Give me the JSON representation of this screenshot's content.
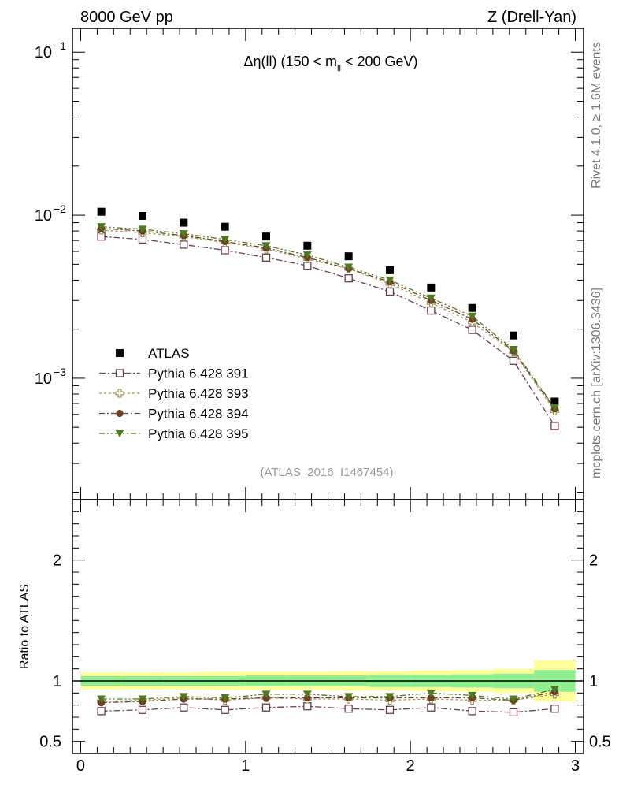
{
  "header": {
    "left": "8000 GeV pp",
    "right": "Z (Drell-Yan)"
  },
  "side_labels": {
    "rivet": "Rivet 4.1.0, ≥ 1.6M events",
    "mcplots": "mcplots.cern.ch [arXiv:1306.3436]"
  },
  "colors": {
    "atlas": "#000000",
    "p391": "#6e3a52",
    "p393": "#9a9a55",
    "p394": "#6b4226",
    "p395": "#4f7a1f",
    "band_outer": "#ffff99",
    "band_inner": "#90ee90"
  },
  "chart_data": [
    {
      "type": "scatter",
      "name": "main",
      "title": "Δη(ll) (150 < m_ll < 200 GeV)",
      "title_parts": {
        "prefix": "Δη(ll) (150 < m",
        "sub": "ll",
        "suffix": " < 200 GeV)"
      },
      "analysis_tag": "(ATLAS_2016_I1467454)",
      "xlabel": "",
      "ylabel": "",
      "yscale": "log",
      "xlim": [
        -0.05,
        3.05
      ],
      "ylim": [
        0.00018,
        0.14
      ],
      "ytick_labels": [
        {
          "value": 0.1,
          "base": "10",
          "exp": "−1"
        },
        {
          "value": 0.01,
          "base": "10",
          "exp": "−2"
        },
        {
          "value": 0.001,
          "base": "10",
          "exp": "−3"
        }
      ],
      "x": [
        0.125,
        0.375,
        0.625,
        0.875,
        1.125,
        1.375,
        1.625,
        1.875,
        2.125,
        2.375,
        2.625,
        2.875
      ],
      "series": [
        {
          "name": "ATLAS",
          "key": "atlas",
          "marker": "square-filled",
          "values": [
            0.0105,
            0.0099,
            0.009,
            0.0085,
            0.0074,
            0.0065,
            0.0056,
            0.0046,
            0.0036,
            0.0027,
            0.00183,
            0.00072
          ]
        },
        {
          "name": "Pythia 6.428 391",
          "key": "p391",
          "marker": "square-open",
          "dash": "8,3,2,3",
          "values": [
            0.0074,
            0.0071,
            0.0066,
            0.0061,
            0.0055,
            0.0049,
            0.0041,
            0.0034,
            0.0026,
            0.00198,
            0.00128,
            0.00051
          ]
        },
        {
          "name": "Pythia 6.428 393",
          "key": "p393",
          "marker": "cross-open",
          "dash": "3,3",
          "values": [
            0.0081,
            0.0078,
            0.0074,
            0.0068,
            0.0062,
            0.0054,
            0.0047,
            0.0038,
            0.0029,
            0.0022,
            0.00145,
            0.00063
          ]
        },
        {
          "name": "Pythia 6.428 394",
          "key": "p394",
          "marker": "circle-filled",
          "dash": "7,3,2,3",
          "values": [
            0.0083,
            0.008,
            0.0075,
            0.0069,
            0.0063,
            0.0055,
            0.0047,
            0.0039,
            0.003,
            0.0023,
            0.00147,
            0.00065
          ]
        },
        {
          "name": "Pythia 6.428 395",
          "key": "p395",
          "marker": "triangle-down-filled",
          "dash": "7,3,2,3,2,3",
          "values": [
            0.0085,
            0.0082,
            0.0077,
            0.0071,
            0.0065,
            0.0057,
            0.0048,
            0.004,
            0.0031,
            0.0024,
            0.0015,
            0.00066
          ]
        }
      ],
      "legend": {
        "position": "lower-left",
        "entries": [
          "ATLAS",
          "Pythia 6.428 391",
          "Pythia 6.428 393",
          "Pythia 6.428 394",
          "Pythia 6.428 395"
        ]
      }
    },
    {
      "type": "scatter",
      "name": "ratio",
      "ylabel": "Ratio to ATLAS",
      "xlim": [
        -0.05,
        3.05
      ],
      "ylim": [
        0.4,
        2.5
      ],
      "yticks": [
        0.5,
        1,
        2
      ],
      "ytick_labels": [
        "0.5",
        "1",
        "2"
      ],
      "xticks": [
        0,
        1,
        2,
        3
      ],
      "xtick_labels": [
        "0",
        "1",
        "2",
        "3"
      ],
      "bins": [
        [
          0,
          0.25
        ],
        [
          0.25,
          0.5
        ],
        [
          0.5,
          0.75
        ],
        [
          0.75,
          1.0
        ],
        [
          1.0,
          1.25
        ],
        [
          1.25,
          1.5
        ],
        [
          1.5,
          1.75
        ],
        [
          1.75,
          2.0
        ],
        [
          2.0,
          2.25
        ],
        [
          2.25,
          2.5
        ],
        [
          2.5,
          2.75
        ],
        [
          2.75,
          3.0
        ]
      ],
      "band_outer": [
        0.07,
        0.07,
        0.07,
        0.075,
        0.075,
        0.075,
        0.08,
        0.08,
        0.085,
        0.09,
        0.1,
        0.17
      ],
      "band_inner": [
        0.04,
        0.04,
        0.04,
        0.04,
        0.045,
        0.045,
        0.045,
        0.05,
        0.05,
        0.055,
        0.06,
        0.09
      ],
      "x": [
        0.125,
        0.375,
        0.625,
        0.875,
        1.125,
        1.375,
        1.625,
        1.875,
        2.125,
        2.375,
        2.625,
        2.875
      ],
      "series": [
        {
          "name": "Pythia 6.428 391",
          "key": "p391",
          "marker": "square-open",
          "dash": "8,3,2,3",
          "values": [
            0.75,
            0.76,
            0.78,
            0.76,
            0.78,
            0.79,
            0.77,
            0.76,
            0.78,
            0.75,
            0.74,
            0.77
          ]
        },
        {
          "name": "Pythia 6.428 393",
          "key": "p393",
          "marker": "cross-open",
          "dash": "3,3",
          "values": [
            0.83,
            0.84,
            0.86,
            0.84,
            0.86,
            0.85,
            0.85,
            0.84,
            0.85,
            0.84,
            0.84,
            0.89
          ]
        },
        {
          "name": "Pythia 6.428 394",
          "key": "p394",
          "marker": "circle-filled",
          "dash": "7,3,2,3",
          "values": [
            0.82,
            0.83,
            0.85,
            0.85,
            0.86,
            0.86,
            0.86,
            0.86,
            0.86,
            0.86,
            0.84,
            0.91
          ]
        },
        {
          "name": "Pythia 6.428 395",
          "key": "p395",
          "marker": "triangle-down-filled",
          "dash": "7,3,2,3,2,3",
          "values": [
            0.85,
            0.85,
            0.87,
            0.86,
            0.89,
            0.89,
            0.87,
            0.87,
            0.9,
            0.88,
            0.85,
            0.93
          ]
        }
      ]
    }
  ]
}
